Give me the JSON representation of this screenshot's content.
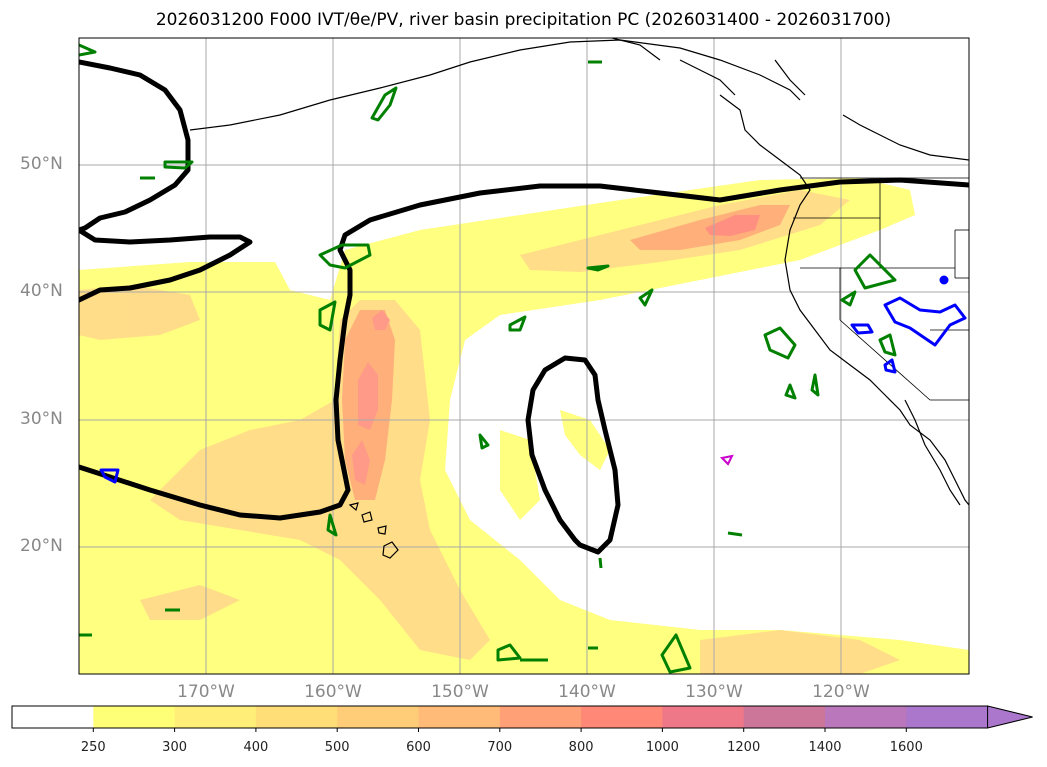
{
  "title": "2026031200 F000 IVT/θe/PV, river basin precipitation PC (2026031400 - 2026031700)",
  "lat_labels": [
    "50°N",
    "40°N",
    "30°N",
    "20°N"
  ],
  "lon_labels": [
    "170°W",
    "160°W",
    "150°W",
    "140°W",
    "130°W",
    "120°W"
  ],
  "colorbar": {
    "levels": [
      "250",
      "300",
      "400",
      "500",
      "600",
      "700",
      "800",
      "1000",
      "1200",
      "1400",
      "1600"
    ],
    "colors": [
      "#ffffff",
      "#ffff77",
      "#ffee77",
      "#ffdd77",
      "#ffcc77",
      "#ffbb77",
      "#ffa077",
      "#ff8877",
      "#ee7788",
      "#cc7799",
      "#bb77bb",
      "#aa77cc"
    ],
    "extend": "max"
  },
  "colors": {
    "ivt_light": "#ffff80",
    "ivt_mid": "#ffd98a",
    "ivt_strong": "#ffb07a",
    "ivt_peak": "#ff8f80",
    "theta_e": "#000000",
    "pv": "#008000",
    "precip": "#0000ff",
    "magenta": "#cc00cc",
    "coast": "#000000"
  }
}
